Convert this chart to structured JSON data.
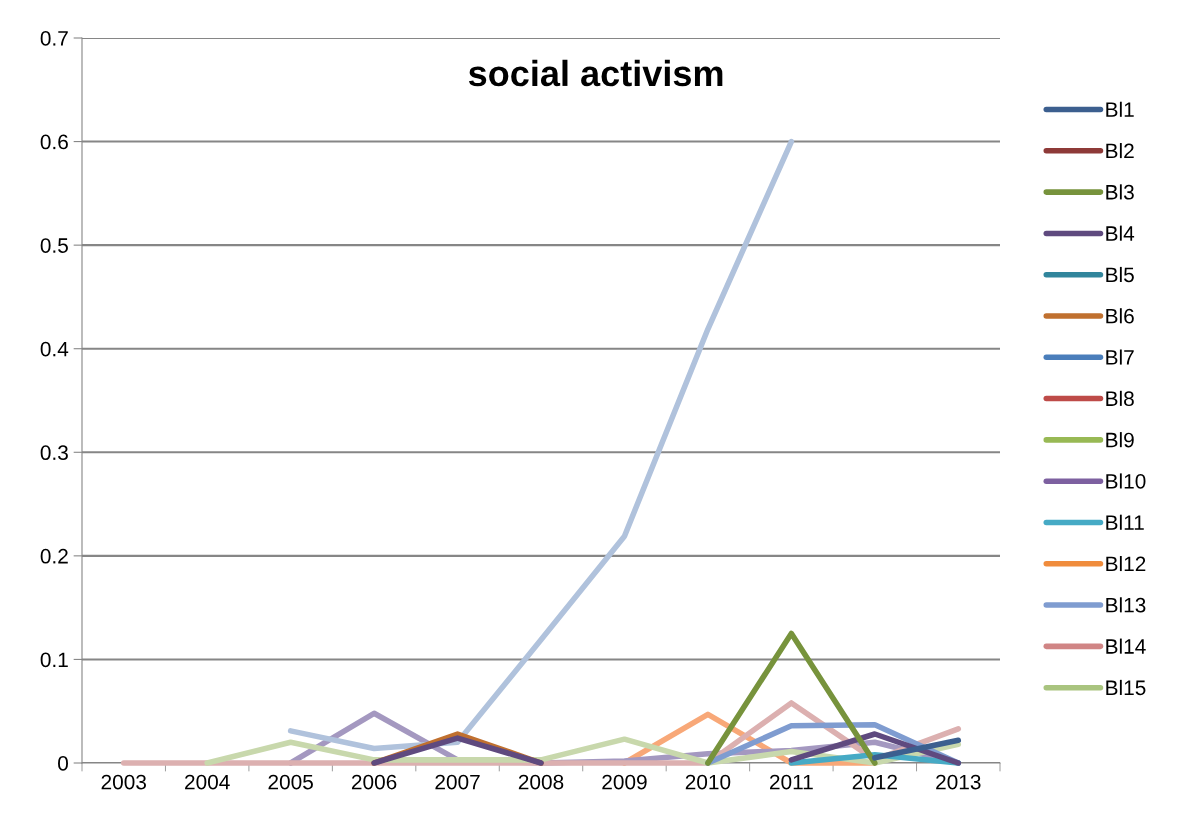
{
  "chart_data": {
    "type": "line",
    "title": "social activism",
    "categories": [
      "2003",
      "2004",
      "2005",
      "2006",
      "2007",
      "2008",
      "2009",
      "2010",
      "2011",
      "2012",
      "2013"
    ],
    "ylim": [
      0,
      0.7
    ],
    "yticks": [
      0,
      0.1,
      0.2,
      0.3,
      0.4,
      0.5,
      0.6,
      0.7
    ],
    "grid": "y",
    "legend": "right",
    "marker": "none",
    "line_style": "solid",
    "series": [
      {
        "name": "Bl1",
        "color": "#3c5f8f",
        "values": [
          null,
          null,
          null,
          null,
          null,
          null,
          null,
          null,
          null,
          0.005,
          0.022
        ]
      },
      {
        "name": "Bl2",
        "color": "#8e3a38",
        "values": [
          null,
          null,
          null,
          null,
          null,
          null,
          null,
          null,
          null,
          null,
          null
        ]
      },
      {
        "name": "Bl3",
        "color": "#77933c",
        "values": [
          null,
          null,
          null,
          null,
          null,
          null,
          null,
          0,
          0.125,
          0,
          null
        ]
      },
      {
        "name": "Bl4",
        "color": "#5f4a7f",
        "values": [
          null,
          null,
          null,
          0,
          0.024,
          0,
          null,
          null,
          0.003,
          0.028,
          0
        ]
      },
      {
        "name": "Bl5",
        "color": "#31859c",
        "values": [
          null,
          null,
          null,
          null,
          null,
          null,
          null,
          null,
          null,
          null,
          null
        ]
      },
      {
        "name": "Bl6",
        "color": "#c0702f",
        "values": [
          null,
          null,
          null,
          0,
          0.028,
          0,
          null,
          null,
          null,
          null,
          null
        ]
      },
      {
        "name": "Bl7",
        "color": "#4a7ebb",
        "values": [
          null,
          null,
          null,
          null,
          null,
          null,
          null,
          null,
          null,
          null,
          null
        ]
      },
      {
        "name": "Bl8",
        "color": "#be4b48",
        "values": [
          null,
          null,
          null,
          null,
          null,
          null,
          null,
          null,
          null,
          null,
          null
        ]
      },
      {
        "name": "Bl9",
        "color": "#98b954",
        "values": [
          null,
          null,
          null,
          null,
          null,
          null,
          null,
          null,
          null,
          null,
          null
        ]
      },
      {
        "name": "Bl10",
        "color": "#7d60a0",
        "values": [
          null,
          null,
          null,
          null,
          null,
          null,
          null,
          null,
          null,
          null,
          null
        ]
      },
      {
        "name": "Bl11",
        "color": "#46aac5",
        "values": [
          null,
          null,
          null,
          null,
          null,
          null,
          null,
          null,
          0,
          0.008,
          0
        ]
      },
      {
        "name": "Bl12",
        "color": "#f08c3c",
        "values": [
          null,
          null,
          null,
          null,
          null,
          null,
          null,
          null,
          null,
          null,
          null
        ]
      },
      {
        "name": "Bl13",
        "color": "#7f9cd0",
        "values": [
          null,
          null,
          null,
          null,
          null,
          null,
          null,
          0,
          0.036,
          0.037,
          0
        ]
      },
      {
        "name": "Bl14",
        "color": "#d08585",
        "values": [
          null,
          null,
          null,
          null,
          null,
          null,
          null,
          null,
          null,
          null,
          null
        ]
      },
      {
        "name": "Bl15",
        "color": "#a9c47f",
        "values": [
          null,
          null,
          null,
          null,
          null,
          null,
          null,
          null,
          null,
          null,
          null
        ]
      },
      {
        "color": "#f8a878",
        "values": [
          null,
          null,
          null,
          null,
          null,
          null,
          0,
          0.047,
          0,
          0,
          null
        ]
      },
      {
        "color": "#a498c0",
        "values": [
          null,
          null,
          0,
          0.048,
          0.003,
          0,
          0.002,
          0.009,
          0.012,
          0.02,
          0
        ]
      },
      {
        "color": "#dcb0b0",
        "values": [
          0,
          0,
          0,
          0,
          0,
          0,
          0,
          0,
          0.058,
          0.003,
          0.033
        ]
      },
      {
        "color": "#c8d8ac",
        "values": [
          null,
          0,
          0.02,
          0.003,
          0.003,
          0.003,
          0.023,
          0,
          0.011,
          0,
          0.018
        ]
      },
      {
        "color": "#b0c2dc",
        "values": [
          null,
          null,
          0.031,
          0.014,
          0.02,
          0.119,
          0.219,
          0.419,
          0.6,
          null,
          null
        ]
      }
    ]
  }
}
